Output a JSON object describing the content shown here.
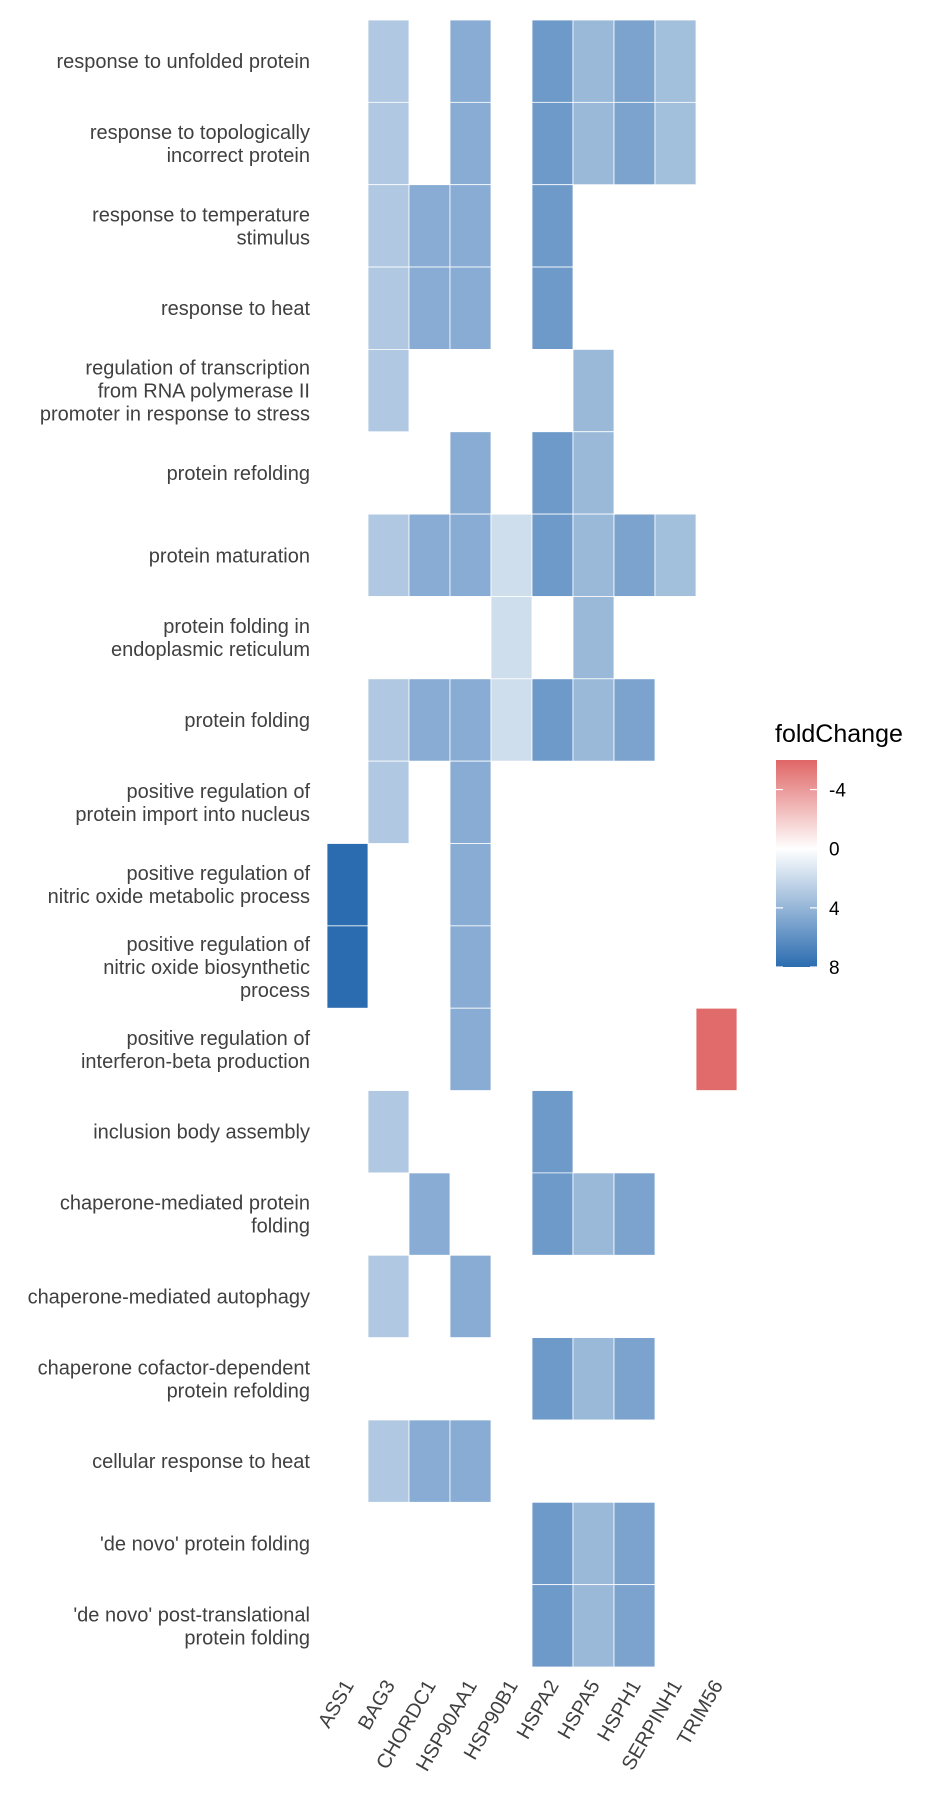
{
  "chart_data": {
    "type": "heatmap",
    "columns": [
      "ASS1",
      "BAG3",
      "CHORDC1",
      "HSP90AA1",
      "HSP90B1",
      "HSPA2",
      "HSPA5",
      "HSPH1",
      "SERPINH1",
      "TRIM56"
    ],
    "rows": [
      "response to unfolded protein",
      "response to topologically\nincorrect protein",
      "response to temperature\nstimulus",
      "response to heat",
      "regulation of transcription\nfrom RNA polymerase II\npromoter in response to stress",
      "protein refolding",
      "protein maturation",
      "protein folding in\nendoplasmic reticulum",
      "protein folding",
      "positive regulation of\nprotein import into nucleus",
      "positive regulation of\nnitric oxide metabolic process",
      "positive regulation of\nnitric oxide biosynthetic\nprocess",
      "positive regulation of\ninterferon-beta production",
      "inclusion body assembly",
      "chaperone-mediated protein\nfolding",
      "chaperone-mediated autophagy",
      "chaperone cofactor-dependent\nprotein refolding",
      "cellular response to heat",
      "'de novo' protein folding",
      "'de novo' post-translational\nprotein folding"
    ],
    "values": [
      [
        null,
        3.0,
        null,
        4.5,
        null,
        5.5,
        3.8,
        5.0,
        3.5,
        null
      ],
      [
        null,
        3.0,
        null,
        4.5,
        null,
        5.5,
        3.8,
        5.0,
        3.5,
        null
      ],
      [
        null,
        3.0,
        4.5,
        4.5,
        null,
        5.5,
        null,
        null,
        null,
        null
      ],
      [
        null,
        3.0,
        4.5,
        4.5,
        null,
        5.5,
        null,
        null,
        null,
        null
      ],
      [
        null,
        3.0,
        null,
        null,
        null,
        null,
        3.8,
        null,
        null,
        null
      ],
      [
        null,
        null,
        null,
        4.5,
        null,
        5.5,
        3.8,
        null,
        null,
        null
      ],
      [
        null,
        3.0,
        4.5,
        4.5,
        1.8,
        5.5,
        3.8,
        5.0,
        3.5,
        null
      ],
      [
        null,
        null,
        null,
        null,
        1.8,
        null,
        3.8,
        null,
        null,
        null
      ],
      [
        null,
        3.0,
        4.5,
        4.5,
        1.8,
        5.5,
        3.8,
        5.0,
        null,
        null
      ],
      [
        null,
        3.0,
        null,
        4.5,
        null,
        null,
        null,
        null,
        null,
        null
      ],
      [
        8.5,
        null,
        null,
        4.5,
        null,
        null,
        null,
        null,
        null,
        null
      ],
      [
        8.5,
        null,
        null,
        4.5,
        null,
        null,
        null,
        null,
        null,
        null
      ],
      [
        null,
        null,
        null,
        4.5,
        null,
        null,
        null,
        null,
        null,
        -5.8
      ],
      [
        null,
        3.0,
        null,
        null,
        null,
        5.5,
        null,
        null,
        null,
        null
      ],
      [
        null,
        null,
        4.5,
        null,
        null,
        5.5,
        3.8,
        5.0,
        null,
        null
      ],
      [
        null,
        3.0,
        null,
        4.5,
        null,
        null,
        null,
        null,
        null,
        null
      ],
      [
        null,
        null,
        null,
        null,
        null,
        5.5,
        3.8,
        5.0,
        null,
        null
      ],
      [
        null,
        3.0,
        4.5,
        4.5,
        null,
        null,
        null,
        null,
        null,
        null
      ],
      [
        null,
        null,
        null,
        null,
        null,
        5.5,
        3.8,
        5.0,
        null,
        null
      ],
      [
        null,
        null,
        null,
        null,
        null,
        5.5,
        3.8,
        5.0,
        null,
        null
      ]
    ],
    "legend": {
      "title": "foldChange",
      "ticks": [
        "-4",
        "0",
        "4",
        "8"
      ],
      "tick_values": [
        -4,
        0,
        4,
        8
      ],
      "range": [
        -6,
        8
      ],
      "colors": {
        "low": "#e06666",
        "mid": "#ffffff",
        "high": "#2b6cb0"
      }
    },
    "grid": false
  }
}
